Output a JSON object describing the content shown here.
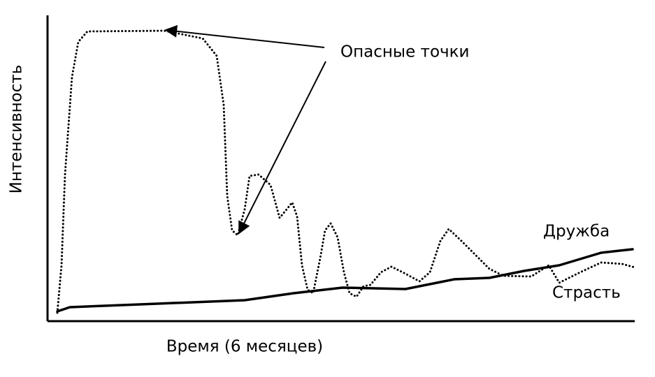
{
  "chart_data": {
    "type": "line",
    "x_label": "Время (6 месяцев)",
    "y_label": "Интенсивность",
    "annotation": "Опасные точки",
    "xlim": [
      0,
      210
    ],
    "ylim": [
      0,
      110
    ],
    "series": [
      {
        "name": "Страсть",
        "color": "#000000",
        "style": "dotted",
        "x": [
          3.5,
          5,
          6.25,
          7.5,
          8.75,
          11,
          14.25,
          41.75,
          55.5,
          60.5,
          63,
          64.25,
          66,
          68,
          70.5,
          72.25,
          75.5,
          79.75,
          83,
          85.5,
          87.5,
          89.25,
          91,
          93,
          95,
          97.5,
          99.25,
          101.25,
          103.75,
          106,
          108,
          110.5,
          113,
          115.5,
          119.25,
          123,
          128,
          133,
          136.75,
          140.5,
          143.5,
          148,
          153,
          158,
          163,
          173,
          179.25,
          183,
          190.5,
          198,
          205.5,
          210
        ],
        "values": [
          3,
          20,
          52.5,
          70,
          87.5,
          100,
          103.75,
          104,
          101.25,
          95,
          77.5,
          45,
          32.5,
          30.75,
          40,
          52,
          52.5,
          48.75,
          37,
          40,
          42.5,
          37.5,
          20,
          11.25,
          10,
          22.5,
          32.5,
          35,
          30,
          17.5,
          10,
          8.75,
          12.5,
          13,
          17.5,
          19.5,
          17,
          14.25,
          17.5,
          28.75,
          33,
          28.75,
          23.75,
          18.75,
          16.25,
          16,
          20,
          13.75,
          17.5,
          21,
          20.5,
          19.25
        ]
      },
      {
        "name": "Дружба",
        "color": "#000000",
        "style": "solid",
        "x": [
          3.5,
          8,
          33,
          70.5,
          88,
          105.5,
          128,
          145.5,
          158,
          170.5,
          183,
          198,
          209.25
        ],
        "values": [
          3.5,
          5,
          6,
          7.5,
          10,
          12,
          11.5,
          15,
          15.5,
          18,
          20,
          24.5,
          25.75
        ]
      }
    ]
  }
}
